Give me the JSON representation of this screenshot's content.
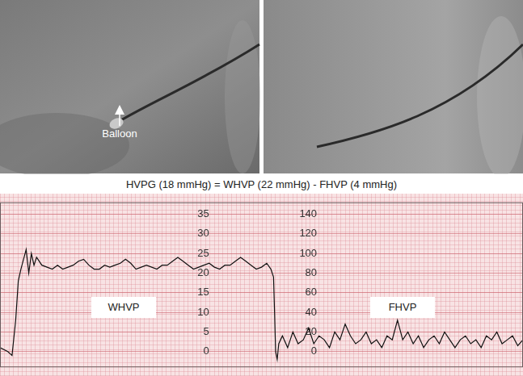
{
  "image_labels": [
    "Balloon"
  ],
  "chart_data": {
    "type": "line",
    "title": "HVPG (18 mmHg) = WHVP (22 mmHg) - FHVP (4 mmHg)",
    "annotations": [
      "WHVP",
      "FHVP"
    ],
    "x": [
      0,
      1.5,
      2.3,
      3,
      3.5,
      4,
      5,
      5.5,
      6,
      6.5,
      7,
      8,
      9,
      10,
      11,
      12,
      13,
      14,
      15,
      16,
      17,
      18,
      19,
      20,
      21,
      22,
      23,
      24,
      25,
      26,
      27,
      28,
      29,
      30,
      31,
      32,
      33,
      34,
      35,
      36,
      37,
      38,
      39,
      40,
      41,
      42,
      43,
      44,
      45,
      46,
      47,
      48,
      49,
      50,
      51,
      51.8,
      52.3,
      52.5,
      52.7,
      53,
      53.3,
      54,
      55,
      56,
      57,
      58,
      59,
      60,
      61,
      62,
      63,
      64,
      65,
      66,
      67,
      68,
      69,
      70,
      71,
      72,
      73,
      74,
      75,
      76,
      77,
      78,
      79,
      80,
      81,
      82,
      83,
      84,
      85,
      86,
      87,
      88,
      89,
      90,
      91,
      92,
      93,
      94,
      95,
      96,
      97,
      98,
      99,
      100
    ],
    "values": [
      1,
      0,
      -1,
      8,
      18,
      21,
      26,
      20,
      25,
      22,
      24,
      22,
      21.5,
      21,
      22,
      21,
      21.5,
      22,
      23,
      23.5,
      22,
      21,
      21,
      22,
      21.5,
      22,
      22.5,
      23.5,
      22.5,
      21,
      21.5,
      22,
      21.5,
      21,
      22,
      22,
      23,
      24,
      23,
      22,
      21,
      21.5,
      22,
      22.5,
      21.5,
      21,
      22,
      22,
      23,
      24,
      23,
      22,
      21,
      21.5,
      22.5,
      21,
      19,
      10,
      0,
      -2,
      2,
      4,
      1,
      5,
      2,
      3,
      6,
      2,
      4,
      3,
      1,
      5,
      3,
      7,
      4,
      2,
      3,
      5,
      2,
      3,
      1,
      4,
      3,
      8,
      3,
      5,
      2,
      4,
      1,
      3,
      4,
      2,
      5,
      3,
      1,
      3,
      4,
      2,
      3,
      1,
      4,
      3,
      5,
      2,
      3,
      4,
      1.5,
      3
    ],
    "color": "#111111",
    "xlim": [
      0,
      100
    ],
    "ylim": [
      -4,
      38
    ],
    "yticks": [
      0,
      5,
      10,
      15,
      20,
      25,
      30,
      35
    ],
    "y2lim": [
      -16,
      152
    ],
    "y2ticks": [
      0,
      20,
      40,
      60,
      80,
      100,
      120,
      140
    ],
    "grid": true,
    "tick_labels": "y"
  }
}
